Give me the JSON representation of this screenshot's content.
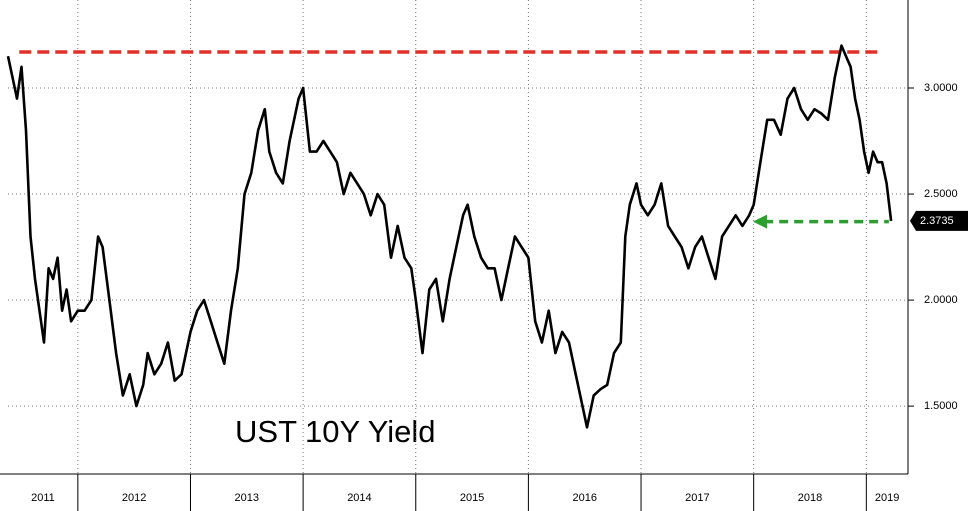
{
  "chart_data": {
    "type": "line",
    "annotation": "UST 10Y Yield",
    "x": [
      2011.38,
      2011.42,
      2011.46,
      2011.5,
      2011.54,
      2011.58,
      2011.62,
      2011.66,
      2011.7,
      2011.74,
      2011.78,
      2011.82,
      2011.86,
      2011.9,
      2011.94,
      2012.0,
      2012.06,
      2012.12,
      2012.18,
      2012.22,
      2012.28,
      2012.34,
      2012.4,
      2012.46,
      2012.52,
      2012.58,
      2012.62,
      2012.68,
      2012.74,
      2012.8,
      2012.86,
      2012.92,
      2013.0,
      2013.06,
      2013.12,
      2013.18,
      2013.24,
      2013.3,
      2013.36,
      2013.42,
      2013.48,
      2013.54,
      2013.6,
      2013.66,
      2013.7,
      2013.76,
      2013.82,
      2013.88,
      2013.96,
      2014.0,
      2014.06,
      2014.12,
      2014.18,
      2014.24,
      2014.3,
      2014.36,
      2014.42,
      2014.48,
      2014.54,
      2014.6,
      2014.66,
      2014.72,
      2014.78,
      2014.84,
      2014.9,
      2014.96,
      2015.0,
      2015.06,
      2015.12,
      2015.18,
      2015.24,
      2015.3,
      2015.36,
      2015.42,
      2015.46,
      2015.52,
      2015.58,
      2015.64,
      2015.7,
      2015.76,
      2015.82,
      2015.88,
      2015.94,
      2016.0,
      2016.06,
      2016.12,
      2016.18,
      2016.24,
      2016.3,
      2016.36,
      2016.42,
      2016.48,
      2016.52,
      2016.58,
      2016.64,
      2016.7,
      2016.76,
      2016.82,
      2016.86,
      2016.9,
      2016.96,
      2017.0,
      2017.06,
      2017.12,
      2017.18,
      2017.24,
      2017.3,
      2017.36,
      2017.42,
      2017.48,
      2017.54,
      2017.6,
      2017.66,
      2017.72,
      2017.78,
      2017.84,
      2017.9,
      2017.96,
      2018.0,
      2018.06,
      2018.12,
      2018.18,
      2018.24,
      2018.3,
      2018.36,
      2018.42,
      2018.48,
      2018.54,
      2018.6,
      2018.66,
      2018.72,
      2018.78,
      2018.82,
      2018.86,
      2018.9,
      2018.94,
      2018.98,
      2019.02,
      2019.06,
      2019.1,
      2019.14,
      2019.18,
      2019.22
    ],
    "values": [
      3.15,
      3.05,
      2.95,
      3.1,
      2.8,
      2.3,
      2.1,
      1.95,
      1.8,
      2.15,
      2.1,
      2.2,
      1.95,
      2.05,
      1.9,
      1.95,
      1.95,
      2.0,
      2.3,
      2.25,
      2.0,
      1.75,
      1.55,
      1.65,
      1.5,
      1.6,
      1.75,
      1.65,
      1.7,
      1.8,
      1.62,
      1.65,
      1.85,
      1.95,
      2.0,
      1.9,
      1.8,
      1.7,
      1.95,
      2.15,
      2.5,
      2.6,
      2.8,
      2.9,
      2.7,
      2.6,
      2.55,
      2.75,
      2.95,
      3.0,
      2.7,
      2.7,
      2.75,
      2.7,
      2.65,
      2.5,
      2.6,
      2.55,
      2.5,
      2.4,
      2.5,
      2.45,
      2.2,
      2.35,
      2.2,
      2.15,
      2.0,
      1.75,
      2.05,
      2.1,
      1.9,
      2.1,
      2.25,
      2.4,
      2.45,
      2.3,
      2.2,
      2.15,
      2.15,
      2.0,
      2.15,
      2.3,
      2.25,
      2.2,
      1.9,
      1.8,
      1.95,
      1.75,
      1.85,
      1.8,
      1.65,
      1.5,
      1.4,
      1.55,
      1.58,
      1.6,
      1.75,
      1.8,
      2.3,
      2.45,
      2.55,
      2.45,
      2.4,
      2.45,
      2.55,
      2.35,
      2.3,
      2.25,
      2.15,
      2.25,
      2.3,
      2.2,
      2.1,
      2.3,
      2.35,
      2.4,
      2.35,
      2.4,
      2.45,
      2.65,
      2.85,
      2.85,
      2.78,
      2.95,
      3.0,
      2.9,
      2.85,
      2.9,
      2.88,
      2.85,
      3.05,
      3.2,
      3.15,
      3.1,
      2.95,
      2.85,
      2.7,
      2.6,
      2.7,
      2.65,
      2.65,
      2.55,
      2.3735
    ],
    "color": "#000000",
    "xlim": [
      2011.38,
      2019.37
    ],
    "xticks": [
      2012,
      2013,
      2014,
      2015,
      2016,
      2017,
      2018,
      2019
    ],
    "year_labels": [
      "2011",
      "2012",
      "2013",
      "2014",
      "2015",
      "2016",
      "2017",
      "2018",
      "2019"
    ],
    "ylim": [
      1.18,
      3.415
    ],
    "yticks": [
      {
        "value": 1.5,
        "label": "1.5000"
      },
      {
        "value": 2,
        "label": "2.0000"
      },
      {
        "value": 2.5,
        "label": "2.5000"
      },
      {
        "value": 3,
        "label": "3.0000"
      }
    ],
    "grid": true,
    "hlines": [
      {
        "value": 3.17,
        "color": "#e0302a",
        "x": [
          2011.48,
          2019.15
        ],
        "arrow": false
      },
      {
        "value": 2.37,
        "color": "#2e9e30",
        "x": [
          2018.04,
          2019.2
        ],
        "arrow": true
      }
    ]
  }
}
